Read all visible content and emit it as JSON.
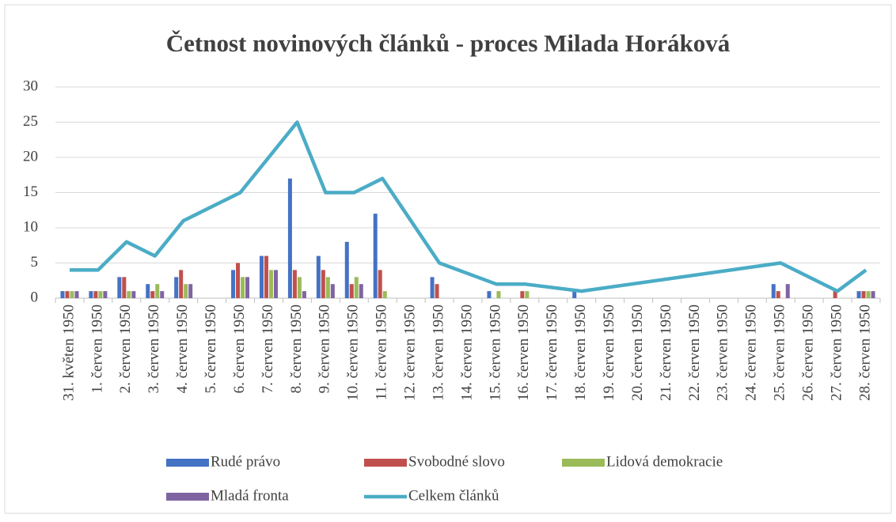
{
  "chart_data": {
    "type": "bar_line",
    "title": "Četnost novinových článků - proces Milada Horáková",
    "categories": [
      "31. květen 1950",
      "1. červen 1950",
      "2. červen 1950",
      "3. červen 1950",
      "4. červen 1950",
      "5. červen 1950",
      "6. červen 1950",
      "7. červen 1950",
      "8. červen 1950",
      "9. červen 1950",
      "10. červen 1950",
      "11. červen 1950",
      "12. červen 1950",
      "13. červen 1950",
      "14. červen 1950",
      "15. červen 1950",
      "16. červen 1950",
      "17. červen 1950",
      "18. červen 1950",
      "19. červen 1950",
      "20. červen 1950",
      "21. červen 1950",
      "22. červen 1950",
      "23. červen 1950",
      "24. červen 1950",
      "25. červen 1950",
      "26. červen 1950",
      "27. červen 1950",
      "28. červen 1950"
    ],
    "series": [
      {
        "name": "Rudé právo",
        "color": "#4472c4",
        "kind": "bar",
        "values": [
          1,
          1,
          3,
          2,
          3,
          null,
          4,
          6,
          17,
          6,
          8,
          12,
          null,
          3,
          null,
          1,
          null,
          null,
          1,
          null,
          null,
          null,
          null,
          null,
          null,
          2,
          null,
          null,
          1
        ]
      },
      {
        "name": "Svobodné slovo",
        "color": "#c0504d",
        "kind": "bar",
        "values": [
          1,
          1,
          3,
          1,
          4,
          null,
          5,
          6,
          4,
          4,
          2,
          4,
          null,
          2,
          null,
          null,
          1,
          null,
          null,
          null,
          null,
          null,
          null,
          null,
          null,
          1,
          null,
          1,
          1
        ]
      },
      {
        "name": "Lidová demokracie",
        "color": "#9bbb59",
        "kind": "bar",
        "values": [
          1,
          1,
          1,
          2,
          2,
          null,
          3,
          4,
          3,
          3,
          3,
          1,
          null,
          null,
          null,
          1,
          1,
          null,
          null,
          null,
          null,
          null,
          null,
          null,
          null,
          null,
          null,
          null,
          1
        ]
      },
      {
        "name": "Mladá fronta",
        "color": "#8064a2",
        "kind": "bar",
        "values": [
          1,
          1,
          1,
          1,
          2,
          null,
          3,
          4,
          1,
          2,
          2,
          null,
          null,
          null,
          null,
          null,
          null,
          null,
          null,
          null,
          null,
          null,
          null,
          null,
          null,
          2,
          null,
          null,
          1
        ]
      },
      {
        "name": "Celkem článků",
        "color": "#4bacc6",
        "kind": "line",
        "values": [
          4,
          4,
          8,
          6,
          11,
          null,
          15,
          20,
          25,
          15,
          15,
          17,
          null,
          5,
          null,
          2,
          2,
          null,
          1,
          null,
          null,
          null,
          null,
          null,
          null,
          5,
          null,
          1,
          4
        ]
      }
    ],
    "connect_gaps": true,
    "ylim": [
      0,
      30
    ],
    "yticks": [
      0,
      5,
      10,
      15,
      20,
      25,
      30
    ],
    "grid": true,
    "legend": "bottom"
  }
}
